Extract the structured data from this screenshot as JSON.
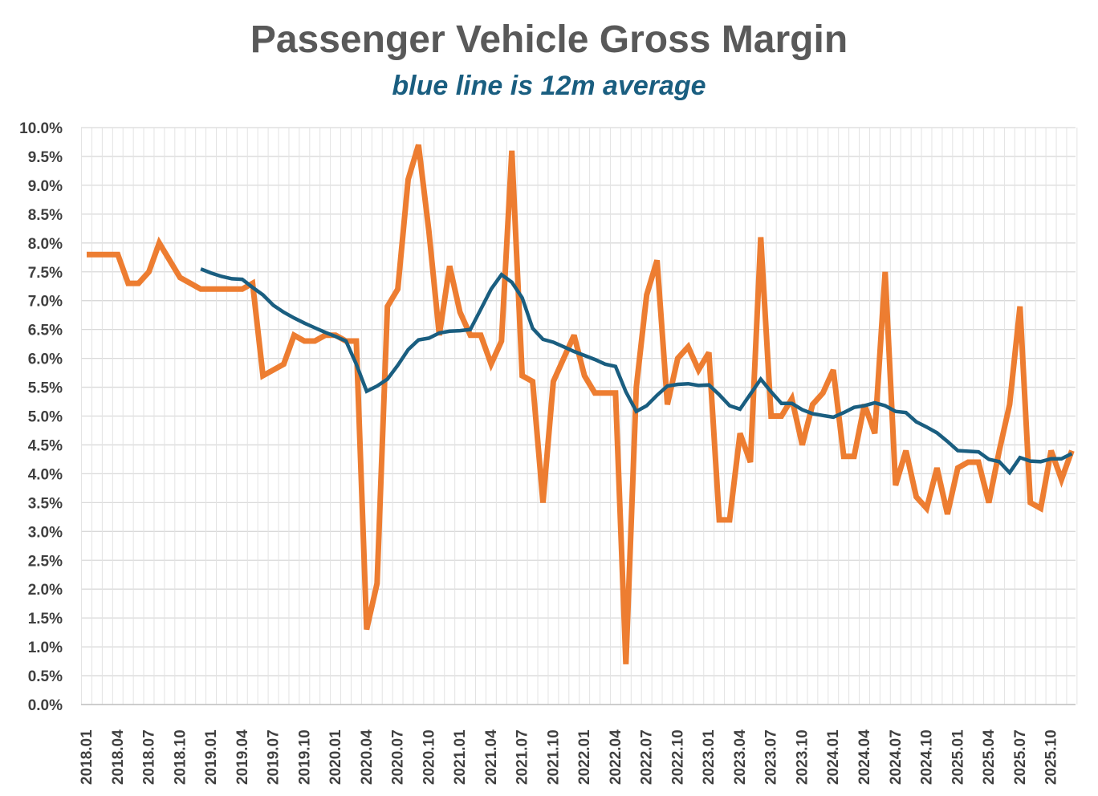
{
  "chart_data": {
    "type": "line",
    "title": "Passenger Vehicle Gross Margin",
    "subtitle": "blue line is 12m average",
    "xlabel": "",
    "ylabel": "",
    "ylim": [
      0,
      10
    ],
    "ytick_labels": [
      "0.0%",
      "0.5%",
      "1.0%",
      "1.5%",
      "2.0%",
      "2.5%",
      "3.0%",
      "3.5%",
      "4.0%",
      "4.5%",
      "5.0%",
      "5.5%",
      "6.0%",
      "6.5%",
      "7.0%",
      "7.5%",
      "8.0%",
      "8.5%",
      "9.0%",
      "9.5%",
      "10.0%"
    ],
    "xtick_labels": [
      "2018.01",
      "2018.04",
      "2018.07",
      "2018.10",
      "2019.01",
      "2019.04",
      "2019.07",
      "2019.10",
      "2020.01",
      "2020.04",
      "2020.07",
      "2020.10",
      "2021.01",
      "2021.04",
      "2021.07",
      "2021.10",
      "2022.01",
      "2022.04",
      "2022.07",
      "2022.10",
      "2023.01",
      "2023.04",
      "2023.07",
      "2023.10",
      "2024.01",
      "2024.04",
      "2024.07",
      "2024.10",
      "2025.01",
      "2025.04",
      "2025.07",
      "2025.10"
    ],
    "grid": true,
    "legend": "none",
    "x": [
      "2018.01",
      "2018.02",
      "2018.03",
      "2018.04",
      "2018.05",
      "2018.06",
      "2018.07",
      "2018.08",
      "2018.09",
      "2018.10",
      "2018.11",
      "2018.12",
      "2019.01",
      "2019.02",
      "2019.03",
      "2019.04",
      "2019.05",
      "2019.06",
      "2019.07",
      "2019.08",
      "2019.09",
      "2019.10",
      "2019.11",
      "2019.12",
      "2020.01",
      "2020.02",
      "2020.03",
      "2020.04",
      "2020.05",
      "2020.06",
      "2020.07",
      "2020.08",
      "2020.09",
      "2020.10",
      "2020.11",
      "2020.12",
      "2021.01",
      "2021.02",
      "2021.03",
      "2021.04",
      "2021.05",
      "2021.06",
      "2021.07",
      "2021.08",
      "2021.09",
      "2021.10",
      "2021.11",
      "2021.12",
      "2022.01",
      "2022.02",
      "2022.03",
      "2022.04",
      "2022.05",
      "2022.06",
      "2022.07",
      "2022.08",
      "2022.09",
      "2022.10",
      "2022.11",
      "2022.12",
      "2023.01",
      "2023.02",
      "2023.03",
      "2023.04",
      "2023.05",
      "2023.06",
      "2023.07",
      "2023.08",
      "2023.09",
      "2023.10",
      "2023.11",
      "2023.12",
      "2024.01",
      "2024.02",
      "2024.03",
      "2024.04",
      "2024.05",
      "2024.06",
      "2024.07",
      "2024.08",
      "2024.09",
      "2024.10",
      "2024.11",
      "2024.12",
      "2025.01",
      "2025.02",
      "2025.03",
      "2025.04",
      "2025.05",
      "2025.06",
      "2025.07",
      "2025.08",
      "2025.09",
      "2025.10",
      "2025.11",
      "2025.12"
    ],
    "series": [
      {
        "color": "#ed7d31",
        "values": [
          7.8,
          7.8,
          7.8,
          7.8,
          7.3,
          7.3,
          7.5,
          8.0,
          7.7,
          7.4,
          7.3,
          7.2,
          7.2,
          7.2,
          7.2,
          7.2,
          7.3,
          5.7,
          5.8,
          5.9,
          6.4,
          6.3,
          6.3,
          6.4,
          6.4,
          6.3,
          6.3,
          1.3,
          2.1,
          6.9,
          7.2,
          9.1,
          9.7,
          8.2,
          6.4,
          7.6,
          6.8,
          6.4,
          6.4,
          5.9,
          6.3,
          9.6,
          5.7,
          5.6,
          3.5,
          5.6,
          6.0,
          6.4,
          5.7,
          5.4,
          5.4,
          5.4,
          0.7,
          5.5,
          7.1,
          7.7,
          5.2,
          6.0,
          6.2,
          5.8,
          6.1,
          3.2,
          3.2,
          4.7,
          4.2,
          8.1,
          5.0,
          5.0,
          5.3,
          4.5,
          5.2,
          5.4,
          5.8,
          4.3,
          4.3,
          5.2,
          4.7,
          7.5,
          3.8,
          4.4,
          3.6,
          3.4,
          4.1,
          3.3,
          4.1,
          4.2,
          4.2,
          3.5,
          4.4,
          5.2,
          6.9,
          3.5,
          3.4,
          4.4,
          3.9,
          4.4
        ]
      },
      {
        "color": "#1a5e80",
        "values": [
          null,
          null,
          null,
          null,
          null,
          null,
          null,
          null,
          null,
          null,
          null,
          7.55,
          7.48,
          7.42,
          7.38,
          7.37,
          7.23,
          7.1,
          6.92,
          6.8,
          6.7,
          6.61,
          6.53,
          6.45,
          6.38,
          6.3,
          5.9,
          5.43,
          5.52,
          5.64,
          5.88,
          6.15,
          6.32,
          6.35,
          6.44,
          6.47,
          6.48,
          6.5,
          6.85,
          7.2,
          7.45,
          7.32,
          7.05,
          6.52,
          6.33,
          6.28,
          6.2,
          6.12,
          6.05,
          5.98,
          5.9,
          5.86,
          5.42,
          5.08,
          5.18,
          5.36,
          5.52,
          5.55,
          5.56,
          5.53,
          5.54,
          5.37,
          5.18,
          5.12,
          5.38,
          5.64,
          5.42,
          5.22,
          5.22,
          5.11,
          5.04,
          5.01,
          4.98,
          5.06,
          5.15,
          5.18,
          5.23,
          5.18,
          5.08,
          5.06,
          4.9,
          4.81,
          4.71,
          4.56,
          4.4,
          4.39,
          4.38,
          4.25,
          4.21,
          4.02,
          4.28,
          4.22,
          4.21,
          4.26,
          4.26,
          4.35
        ]
      }
    ]
  }
}
